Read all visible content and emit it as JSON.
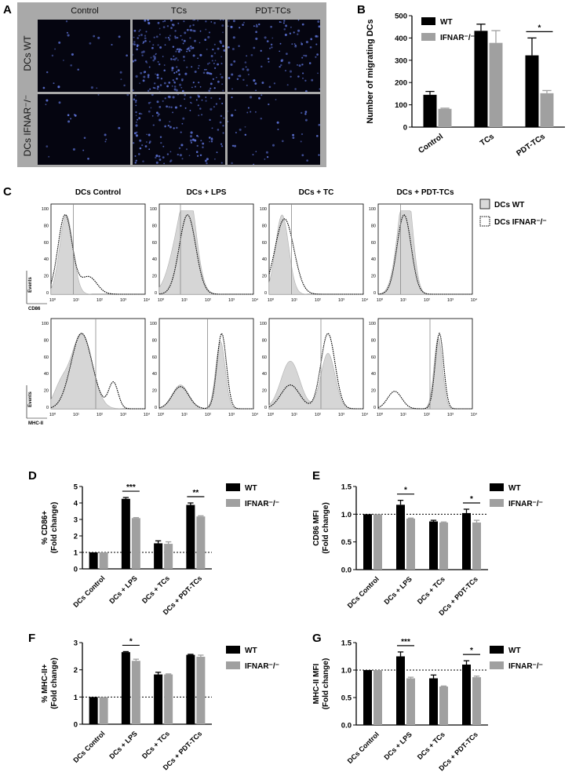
{
  "panel_letters": {
    "a": "A",
    "b": "B",
    "c": "C",
    "d": "D",
    "e": "E",
    "f": "F",
    "g": "G"
  },
  "panel_a": {
    "column_headers": [
      "Control",
      "TCs",
      "PDT-TCs"
    ],
    "row_labels": [
      "DCs WT",
      "DCs IFNAR⁻/⁻"
    ]
  },
  "panel_c": {
    "column_titles": [
      "DCs Control",
      "DCs + LPS",
      "DCs + TC",
      "DCs + PDT-TCs"
    ],
    "row_ylabel": "Events",
    "row_xlabels": [
      "CD86",
      "MHC-II"
    ],
    "y_ticks": [
      "100",
      "80",
      "60",
      "40",
      "20",
      "0"
    ],
    "x_ticks": [
      "10⁰",
      "10¹",
      "10²",
      "10³",
      "10⁴"
    ],
    "legend": [
      {
        "label": "DCs WT",
        "style": "filled",
        "color": "#d9d9d9"
      },
      {
        "label": "DCs IFNAR⁻/⁻",
        "style": "dotted",
        "color": "#000000"
      }
    ]
  },
  "colors": {
    "wt": "#000000",
    "ifnar": "#a0a0a0",
    "micro_frame": "#a9a9a9",
    "cell_bg": "#050510",
    "cell_dot": "#5a6fd0"
  },
  "chart_data": [
    {
      "id": "B",
      "type": "bar",
      "categories": [
        "Control",
        "TCs",
        "PDT-TCs"
      ],
      "series": [
        {
          "name": "WT",
          "values": [
            145,
            432,
            322
          ],
          "errors": [
            15,
            30,
            78
          ]
        },
        {
          "name": "IFNAR⁻/⁻",
          "values": [
            82,
            378,
            152
          ],
          "errors": [
            3,
            55,
            12
          ]
        }
      ],
      "ylabel": "Number of migrating DCs",
      "ylim": [
        0,
        500
      ],
      "yticks": [
        0,
        100,
        200,
        300,
        400,
        500
      ],
      "significance": [
        {
          "category": "PDT-TCs",
          "label": "*"
        }
      ],
      "legend_placement": "top-right"
    },
    {
      "id": "D",
      "type": "bar",
      "categories": [
        "DCs Control",
        "DCs + LPS",
        "DCs + TCs",
        "DCs + PDT-TCs"
      ],
      "series": [
        {
          "name": "WT",
          "values": [
            1.0,
            4.25,
            1.55,
            3.88
          ],
          "errors": [
            0.0,
            0.08,
            0.15,
            0.12
          ]
        },
        {
          "name": "IFNAR⁻/⁻",
          "values": [
            1.0,
            3.08,
            1.52,
            3.18
          ],
          "errors": [
            0.0,
            0.03,
            0.12,
            0.04
          ]
        }
      ],
      "ylabel": "% CD86+\n(Fold change)",
      "ylim": [
        0,
        5
      ],
      "yticks": [
        0,
        1,
        2,
        3,
        4,
        5
      ],
      "reference_line": 1,
      "significance": [
        {
          "category": "DCs + LPS",
          "label": "***"
        },
        {
          "category": "DCs + PDT-TCs",
          "label": "**"
        }
      ],
      "legend_placement": "right"
    },
    {
      "id": "E",
      "type": "bar",
      "categories": [
        "DCs Control",
        "DCs + LPS",
        "DCs + TCs",
        "DCs + PDT-TCs"
      ],
      "series": [
        {
          "name": "WT",
          "values": [
            1.0,
            1.17,
            0.87,
            1.02
          ],
          "errors": [
            0.0,
            0.08,
            0.02,
            0.07
          ]
        },
        {
          "name": "IFNAR⁻/⁻",
          "values": [
            1.0,
            0.92,
            0.85,
            0.85
          ],
          "errors": [
            0.0,
            0.01,
            0.01,
            0.04
          ]
        }
      ],
      "ylabel": "CD86 MFI\n(Fold change)",
      "ylim": [
        0,
        1.5
      ],
      "yticks": [
        0.0,
        0.5,
        1.0,
        1.5
      ],
      "reference_line": 1,
      "significance": [
        {
          "category": "DCs + LPS",
          "label": "*"
        },
        {
          "category": "DCs + PDT-TCs",
          "label": "*"
        }
      ],
      "legend_placement": "right"
    },
    {
      "id": "F",
      "type": "bar",
      "categories": [
        "DCs Control",
        "DCs + LPS",
        "DCs + TCs",
        "DCs + PDT-TCs"
      ],
      "series": [
        {
          "name": "WT",
          "values": [
            1.0,
            2.65,
            1.83,
            2.55
          ],
          "errors": [
            0.0,
            0.02,
            0.08,
            0.02
          ]
        },
        {
          "name": "IFNAR⁻/⁻",
          "values": [
            1.0,
            2.33,
            1.83,
            2.48
          ],
          "errors": [
            0.0,
            0.06,
            0.02,
            0.06
          ]
        }
      ],
      "ylabel": "% MHC-II+\n(Fold change)",
      "ylim": [
        0,
        3
      ],
      "yticks": [
        0,
        1,
        2,
        3
      ],
      "reference_line": 1,
      "significance": [
        {
          "category": "DCs + LPS",
          "label": "*"
        }
      ],
      "legend_placement": "right"
    },
    {
      "id": "G",
      "type": "bar",
      "categories": [
        "DCs Control",
        "DCs + LPS",
        "DCs + TCs",
        "DCs + PDT-TCs"
      ],
      "series": [
        {
          "name": "WT",
          "values": [
            1.0,
            1.25,
            0.85,
            1.1
          ],
          "errors": [
            0.0,
            0.08,
            0.06,
            0.07
          ]
        },
        {
          "name": "IFNAR⁻/⁻",
          "values": [
            1.0,
            0.85,
            0.7,
            0.87
          ],
          "errors": [
            0.0,
            0.02,
            0.01,
            0.02
          ]
        }
      ],
      "ylabel": "MHC-II MFI\n(Fold change)",
      "ylim": [
        0,
        1.5
      ],
      "yticks": [
        0.0,
        0.5,
        1.0,
        1.5
      ],
      "reference_line": 1,
      "significance": [
        {
          "category": "DCs + LPS",
          "label": "***"
        },
        {
          "category": "DCs + PDT-TCs",
          "label": "*"
        }
      ],
      "legend_placement": "right"
    }
  ]
}
